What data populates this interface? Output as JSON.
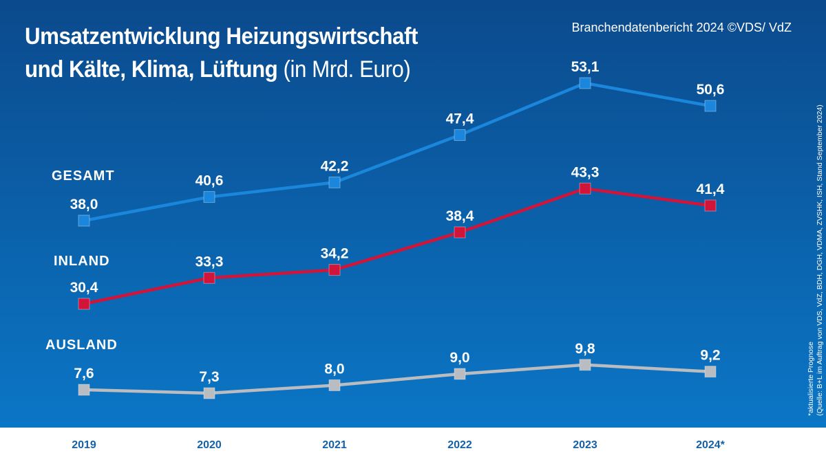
{
  "header": {
    "title_line1": "Umsatzentwicklung Heizungswirtschaft",
    "title_line2": "und Kälte, Klima, Lüftung",
    "title_unit": "(in Mrd. Euro)",
    "source": "Branchendatenbericht 2024 ©VDS/ VdZ"
  },
  "side_note": {
    "line1": "*aktualisierte Prognose",
    "line2": "(Quelle: B+L im Auftrag von VDS, VdZ, BDH, DGH, VDMA, ZVSHK, ISH, Stand September 2024)"
  },
  "colors": {
    "background_top": "#0b4a8c",
    "background_bottom": "#0b76c6",
    "axis_band": "#ffffff",
    "tick_text": "#1560a6",
    "gesamt": "#1a86dc",
    "inland": "#d0143a",
    "ausland": "#b9bcc0"
  },
  "chart_data": {
    "type": "line",
    "title": "Umsatzentwicklung Heizungswirtschaft und Kälte, Klima, Lüftung (in Mrd. Euro)",
    "xlabel": "",
    "ylabel": "",
    "categories": [
      "2019",
      "2020",
      "2021",
      "2022",
      "2023",
      "2024*"
    ],
    "series": [
      {
        "name": "GESAMT",
        "values": [
          38.0,
          40.6,
          42.2,
          47.4,
          53.1,
          50.6
        ],
        "labels": [
          "38,0",
          "40,6",
          "42,2",
          "47,4",
          "53,1",
          "50,6"
        ]
      },
      {
        "name": "INLAND",
        "values": [
          30.4,
          33.3,
          34.2,
          38.4,
          43.3,
          41.4
        ],
        "labels": [
          "30,4",
          "33,3",
          "34,2",
          "38,4",
          "43,3",
          "41,4"
        ]
      },
      {
        "name": "AUSLAND",
        "values": [
          7.6,
          7.3,
          8.0,
          9.0,
          9.8,
          9.2
        ],
        "labels": [
          "7,6",
          "7,3",
          "8,0",
          "9,0",
          "9,8",
          "9,2"
        ]
      }
    ],
    "grid": false,
    "legend": "inline-left",
    "axis_scale": "segmented (each series drawn in its own vertical band)"
  }
}
